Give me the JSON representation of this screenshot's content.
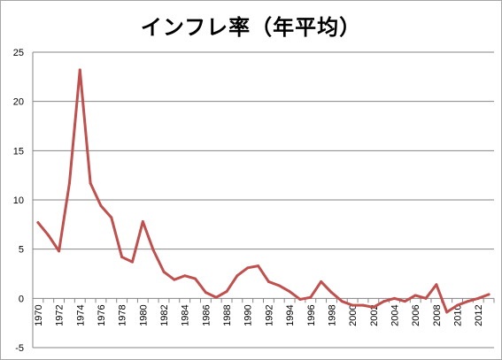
{
  "chart_data": {
    "type": "line",
    "title": "インフレ率（年平均）",
    "xlabel": "",
    "ylabel": "",
    "x": [
      1970,
      1971,
      1972,
      1973,
      1974,
      1975,
      1976,
      1977,
      1978,
      1979,
      1980,
      1981,
      1982,
      1983,
      1984,
      1985,
      1986,
      1987,
      1988,
      1989,
      1990,
      1991,
      1992,
      1993,
      1994,
      1995,
      1996,
      1997,
      1998,
      1999,
      2000,
      2001,
      2002,
      2003,
      2004,
      2005,
      2006,
      2007,
      2008,
      2009,
      2010,
      2011,
      2012,
      2013
    ],
    "series": [
      {
        "name": "",
        "color": "#c0504d",
        "values": [
          7.7,
          6.4,
          4.8,
          11.7,
          23.2,
          11.7,
          9.4,
          8.2,
          4.2,
          3.7,
          7.8,
          4.9,
          2.7,
          1.9,
          2.3,
          2.0,
          0.6,
          0.1,
          0.7,
          2.3,
          3.1,
          3.3,
          1.7,
          1.3,
          0.7,
          -0.1,
          0.1,
          1.7,
          0.6,
          -0.3,
          -0.7,
          -0.7,
          -0.9,
          -0.3,
          0.0,
          -0.3,
          0.3,
          0.0,
          1.4,
          -1.4,
          -0.7,
          -0.3,
          0.0,
          0.4
        ]
      }
    ],
    "x_tick_labels": [
      "1970",
      "1972",
      "1974",
      "1976",
      "1978",
      "1980",
      "1982",
      "1984",
      "1986",
      "1988",
      "1990",
      "1992",
      "1994",
      "1996",
      "1998",
      "2000",
      "2002",
      "2004",
      "2006",
      "2008",
      "2010",
      "2012"
    ],
    "y_tick_labels": [
      "-5",
      "0",
      "5",
      "10",
      "15",
      "20",
      "25"
    ],
    "ylim": [
      -5,
      25
    ],
    "grid": "horizontal",
    "legend": "none"
  }
}
